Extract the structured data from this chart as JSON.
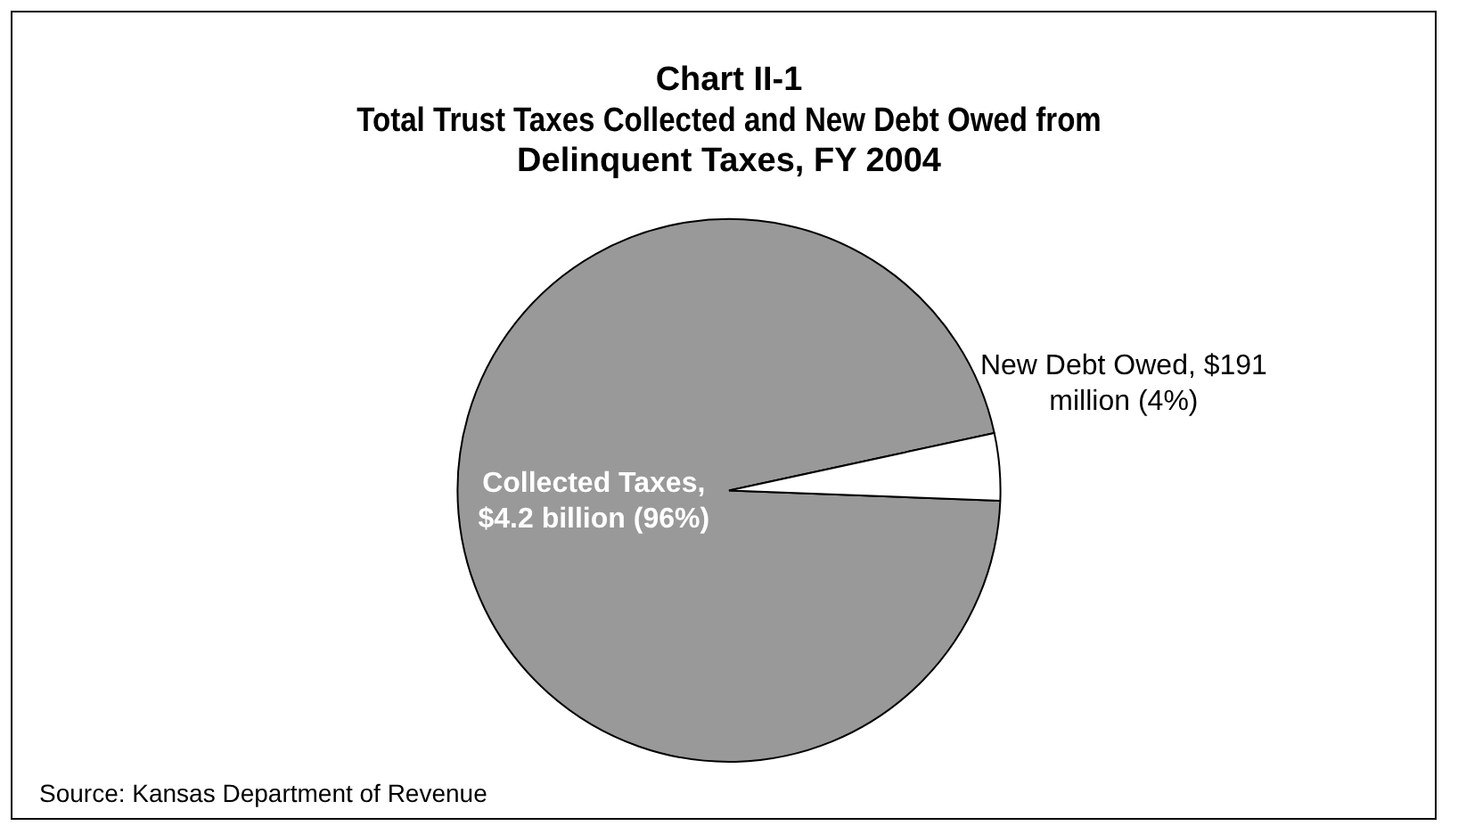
{
  "chart_data": {
    "type": "pie",
    "title": "Chart II-1",
    "subtitle": "Total Trust Taxes Collected and New Debt Owed from Delinquent Taxes, FY 2004",
    "categories": [
      "Collected Taxes, $4.2 billion (96%)",
      "New Debt Owed, $191 million (4%)"
    ],
    "values": [
      96,
      4
    ],
    "colors": [
      "#999999",
      "#ffffff"
    ],
    "legend": false,
    "annotations": [
      "Source: Kansas Department of Revenue"
    ]
  }
}
